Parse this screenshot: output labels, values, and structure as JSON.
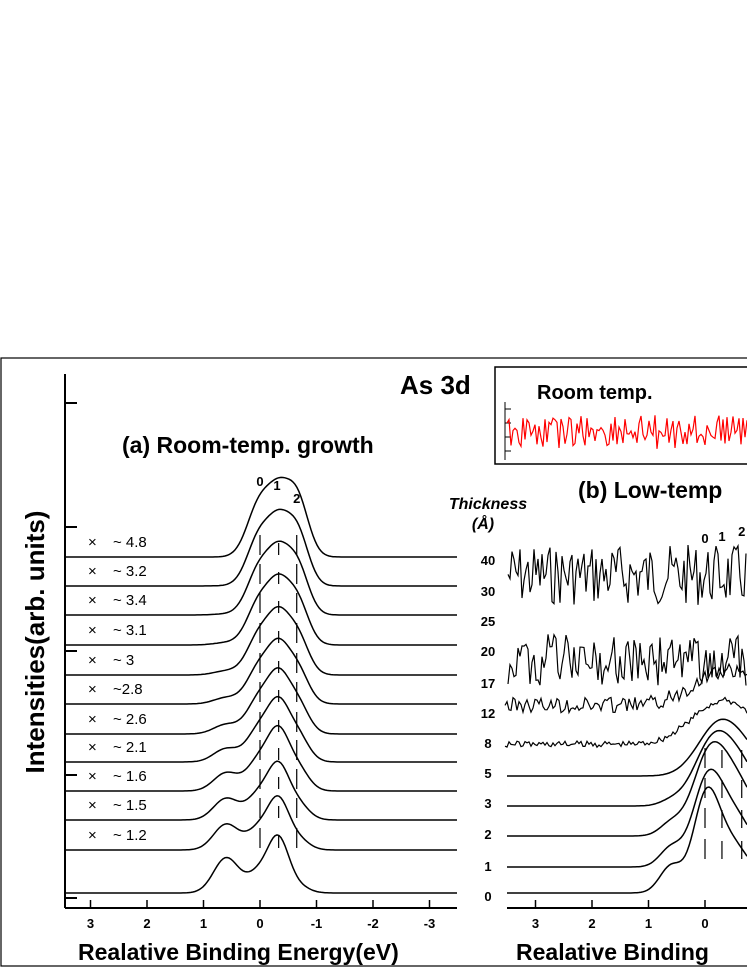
{
  "figure": {
    "title": "As 3d",
    "ylabel": "Intensities(arb. units)"
  },
  "inset": {
    "label": "Room temp.",
    "trace_color": "#ff0000"
  },
  "chart_data": [
    {
      "type": "line",
      "title": "(a) Room-temp. growth",
      "xlabel": "Realative Binding Energy(eV)",
      "ylabel": "Intensities(arb. units)",
      "xlim": [
        3.5,
        -3.5
      ],
      "x_ticks": [
        "3",
        "2",
        "1",
        "0",
        "-1",
        "-2",
        "-3"
      ],
      "component_labels": [
        "0",
        "1",
        "2"
      ],
      "component_positions": [
        0.0,
        -0.3,
        -0.65
      ],
      "series": [
        {
          "name": "~ 4.8"
        },
        {
          "name": "~ 3.2"
        },
        {
          "name": "~ 3.4"
        },
        {
          "name": "~ 3.1"
        },
        {
          "name": "~ 3"
        },
        {
          "name": "~2.8"
        },
        {
          "name": "~ 2.6"
        },
        {
          "name": "~ 2.1"
        },
        {
          "name": "~ 1.6"
        },
        {
          "name": "~ 1.5"
        },
        {
          "name": "~ 1.2"
        },
        {
          "name": ""
        }
      ],
      "line_color": "#000000"
    },
    {
      "type": "line",
      "title": "(b) Low-temp",
      "xlabel": "Realative Binding",
      "legend_title": "Thickness",
      "legend_unit": "(Å)",
      "x_ticks": [
        "3",
        "2",
        "1",
        "0"
      ],
      "component_labels": [
        "0",
        "1",
        "2"
      ],
      "thickness": [
        "40",
        "30",
        "25",
        "20",
        "17",
        "12",
        "8",
        "5",
        "3",
        "2",
        "1",
        "0"
      ],
      "line_color": "#000000"
    }
  ]
}
